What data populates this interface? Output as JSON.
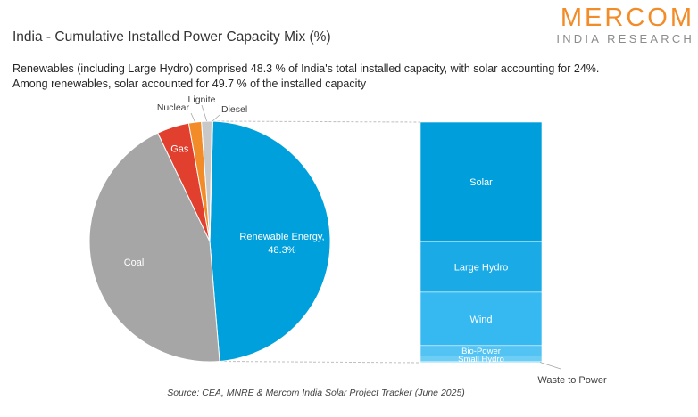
{
  "header": {
    "title": "India - Cumulative Installed Power Capacity Mix (%)",
    "brand_name": "MERCOM",
    "brand_sub": "INDIA RESEARCH",
    "subtitle_line1": "Renewables (including Large Hydro) comprised 48.3 % of India's total installed capacity, with solar accounting for 24%.",
    "subtitle_line2": "Among renewables, solar accounted for 49.7 % of the installed capacity"
  },
  "source": "Source: CEA, MNRE & Mercom India Solar Project Tracker (June 2025)",
  "colors": {
    "renewable": "#00a0dc",
    "coal": "#a6a6a6",
    "gas": "#e2402e",
    "nuclear": "#f28c28",
    "lignite": "#c8c8c8",
    "diesel": "#7f7f7f",
    "brand": "#f28c28",
    "connector": "#bfbfbf"
  },
  "chart_data": [
    {
      "type": "pie",
      "slices": [
        {
          "label": "Renewable Energy, 48.3%",
          "value": 48.3,
          "color": "#00a0dc"
        },
        {
          "label": "Coal",
          "value": 44.2,
          "color": "#a6a6a6"
        },
        {
          "label": "Gas",
          "value": 4.3,
          "color": "#e2402e"
        },
        {
          "label": "Nuclear",
          "value": 1.7,
          "color": "#f28c28"
        },
        {
          "label": "Lignite",
          "value": 1.4,
          "color": "#c8c8c8"
        },
        {
          "label": "Diesel",
          "value": 0.1,
          "color": "#7f7f7f"
        }
      ]
    },
    {
      "type": "bar",
      "stacked": true,
      "segments": [
        {
          "label": "Solar",
          "value": 49.7,
          "color": "#009fdb"
        },
        {
          "label": "Large Hydro",
          "value": 21.0,
          "color": "#1aaae6"
        },
        {
          "label": "Wind",
          "value": 22.2,
          "color": "#36b8f0"
        },
        {
          "label": "Bio-Power",
          "value": 4.4,
          "color": "#52c3f3"
        },
        {
          "label": "Small Hydro",
          "value": 2.3,
          "color": "#6ccdf5"
        },
        {
          "label": "Waste to Power",
          "value": 0.4,
          "color": "#8ad8f7"
        }
      ]
    }
  ]
}
